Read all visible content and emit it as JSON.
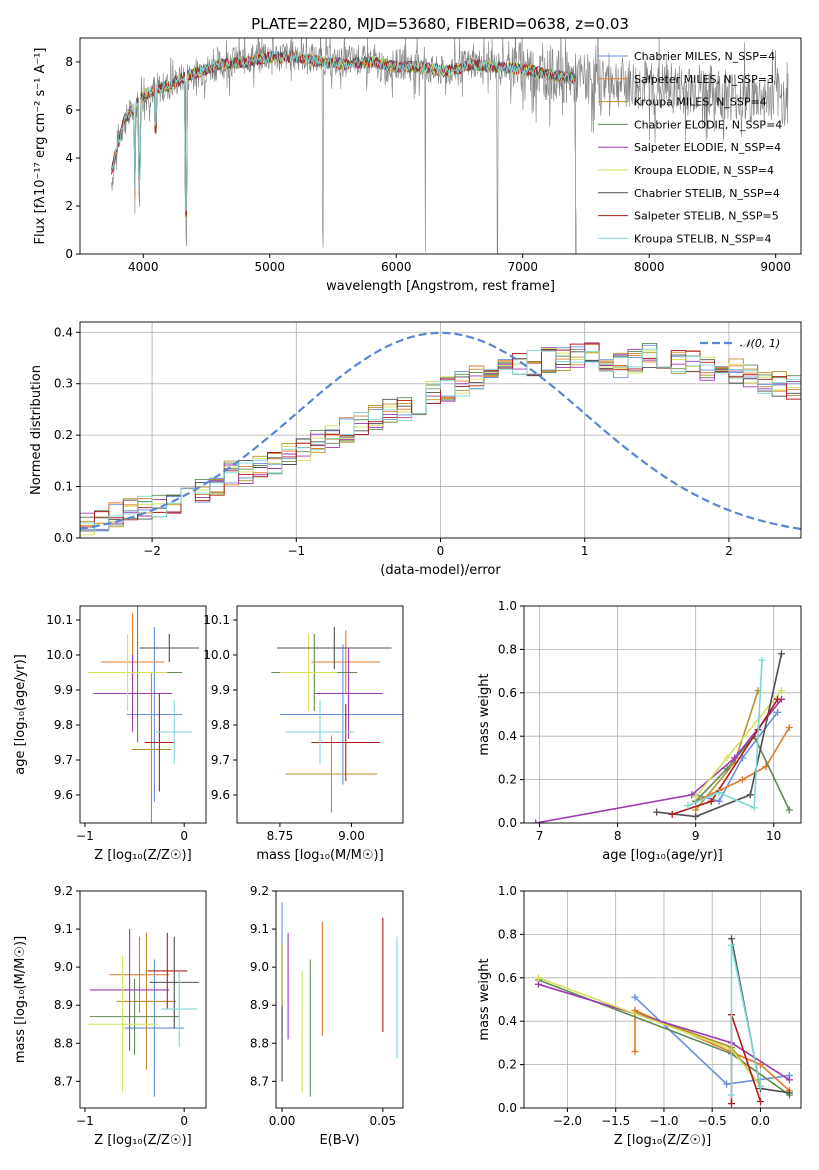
{
  "title": "PLATE=2280, MJD=53680, FIBERID=0638, z=0.03",
  "colors": [
    "#6a8fdb",
    "#e07b2a",
    "#b8912c",
    "#5f8a55",
    "#9d3bb0",
    "#d6e05a",
    "#4f4f4f",
    "#b01c1c",
    "#7fd6d6"
  ],
  "chart_data": [
    {
      "id": "spectrum",
      "type": "line",
      "xlabel": "wavelength [Angstrom, rest frame]",
      "ylabel": "Flux [fλ10⁻¹⁷ erg cm⁻² s⁻¹ A⁻¹]",
      "xlim": [
        3500,
        9200
      ],
      "ylim": [
        0,
        9
      ],
      "xticks": [
        4000,
        5000,
        6000,
        7000,
        8000,
        9000
      ],
      "yticks": [
        0,
        2,
        4,
        6,
        8
      ],
      "grid": false,
      "legend_position": "top-right",
      "legend": [
        "Chabrier MILES, N_SSP=4",
        "Salpeter MILES, N_SSP=3",
        "Kroupa MILES, N_SSP=4",
        "Chabrier ELODIE, N_SSP=4",
        "Salpeter ELODIE, N_SSP=4",
        "Kroupa ELODIE, N_SSP=4",
        "Chabrier STELIB, N_SSP=4",
        "Salpeter STELIB, N_SSP=5",
        "Kroupa STELIB, N_SSP=4"
      ],
      "data_color": "#808080",
      "data_x": [
        3750,
        3800,
        3850,
        3900,
        3950,
        4000,
        4100,
        4200,
        4300,
        4400,
        4500,
        4600,
        4700,
        4800,
        4900,
        5000,
        5100,
        5200,
        5300,
        5400,
        5500,
        5600,
        5700,
        5800,
        5900,
        6000,
        6100,
        6200,
        6300,
        6400,
        6500,
        6600,
        6700,
        6800,
        6900,
        7000,
        7100,
        7200,
        7300,
        7400,
        7500,
        7600,
        7700,
        7800,
        7900,
        8000,
        8100,
        8200,
        8300,
        8400,
        8500,
        8600,
        8700,
        8800,
        8900,
        9000,
        9100
      ],
      "data_y": [
        3.0,
        4.8,
        5.5,
        5.8,
        6.2,
        6.5,
        6.9,
        7.0,
        7.3,
        7.5,
        7.7,
        7.9,
        8.0,
        8.1,
        8.2,
        8.3,
        8.2,
        8.3,
        8.2,
        8.1,
        8.0,
        8.0,
        8.1,
        8.0,
        7.7,
        7.9,
        7.9,
        7.8,
        7.6,
        7.6,
        7.8,
        8.0,
        7.9,
        7.8,
        7.9,
        7.8,
        7.6,
        7.5,
        7.4,
        7.3,
        7.3,
        7.2,
        7.3,
        7.1,
        7.0,
        7.0,
        6.9,
        6.9,
        6.8,
        6.9,
        6.8,
        6.7,
        6.6,
        6.5,
        6.5,
        6.5,
        6.4
      ],
      "model_x": [
        3750,
        3800,
        3850,
        3900,
        4000,
        4100,
        4200,
        4300,
        4400,
        4600,
        4800,
        5000,
        5200,
        5400,
        5600,
        5800,
        6000,
        6200,
        6400,
        6600,
        6800,
        7000,
        7200,
        7400
      ],
      "model_y": [
        3.5,
        4.5,
        5.6,
        5.9,
        6.6,
        6.9,
        7.0,
        7.3,
        7.5,
        7.9,
        8.0,
        8.2,
        8.2,
        8.0,
        7.9,
        8.0,
        7.8,
        7.8,
        7.6,
        7.9,
        7.8,
        7.7,
        7.5,
        7.3
      ],
      "model_end_x": 7420,
      "absorption_lines": [
        {
          "x": 3934,
          "depth": 4.5
        },
        {
          "x": 3969,
          "depth": 4.0
        },
        {
          "x": 4101,
          "depth": 2.0
        },
        {
          "x": 4340,
          "depth": 7.0
        },
        {
          "x": 5420,
          "depth": 7.4
        },
        {
          "x": 6230,
          "depth": 7.6
        },
        {
          "x": 6800,
          "depth": 7.8
        }
      ]
    },
    {
      "id": "residuals",
      "type": "histogram",
      "xlabel": "(data-model)/error",
      "ylabel": "Normed distribution",
      "xlim": [
        -2.5,
        2.5
      ],
      "ylim": [
        0,
        0.42
      ],
      "xticks": [
        -2,
        -1,
        0,
        1,
        2
      ],
      "yticks": [
        0.0,
        0.1,
        0.2,
        0.3,
        0.4
      ],
      "grid": true,
      "legend_position": "top-right",
      "gaussian_label": "𝒩(0, 1)",
      "gaussian_color": "#5b86d6",
      "bin_start": -2.5,
      "bin_width": 0.1,
      "base_hist": [
        0.03,
        0.035,
        0.045,
        0.055,
        0.06,
        0.06,
        0.065,
        0.075,
        0.09,
        0.105,
        0.125,
        0.13,
        0.14,
        0.145,
        0.165,
        0.175,
        0.19,
        0.2,
        0.21,
        0.22,
        0.235,
        0.245,
        0.25,
        0.26,
        0.28,
        0.29,
        0.3,
        0.31,
        0.32,
        0.33,
        0.335,
        0.34,
        0.345,
        0.35,
        0.355,
        0.355,
        0.345,
        0.335,
        0.345,
        0.355,
        0.35,
        0.345,
        0.34,
        0.33,
        0.32,
        0.325,
        0.315,
        0.305,
        0.3,
        0.295,
        0.29,
        0.295,
        0.285,
        0.275,
        0.265,
        0.255,
        0.245,
        0.23,
        0.215,
        0.205,
        0.195,
        0.18,
        0.17,
        0.16,
        0.15,
        0.14,
        0.13,
        0.12,
        0.11,
        0.1,
        0.095,
        0.09,
        0.085,
        0.08,
        0.075,
        0.075,
        0.07,
        0.07,
        0.065,
        0.06,
        0.055,
        0.05,
        0.05,
        0.045,
        0.045,
        0.04,
        0.04,
        0.035,
        0.035,
        0.03,
        0.03,
        0.03,
        0.025,
        0.025,
        0.025,
        0.02,
        0.02,
        0.02,
        0.015,
        0.015
      ]
    },
    {
      "id": "age-vs-Z",
      "type": "errorbar",
      "xlabel": "Z [log₁₀(Z/Z☉)]",
      "ylabel": "age  [log₁₀(age/yr)]",
      "xlim": [
        -1.05,
        0.22
      ],
      "ylim": [
        9.52,
        10.14
      ],
      "xticks": [
        -1,
        0
      ],
      "yticks": [
        9.6,
        9.7,
        9.8,
        9.9,
        10.0,
        10.1
      ],
      "points": [
        {
          "x": -0.3,
          "xerr": 0.28,
          "y": 9.83,
          "yerr": 0.25
        },
        {
          "x": -0.52,
          "xerr": 0.32,
          "y": 9.98,
          "yerr": 0.14
        },
        {
          "x": -0.33,
          "xerr": 0.2,
          "y": 9.73,
          "yerr": 0.22
        },
        {
          "x": -0.47,
          "xerr": 0.45,
          "y": 9.95,
          "yerr": 0.2
        },
        {
          "x": -0.52,
          "xerr": 0.4,
          "y": 9.89,
          "yerr": 0.11
        },
        {
          "x": -0.57,
          "xerr": 0.4,
          "y": 9.95,
          "yerr": 0.11
        },
        {
          "x": -0.15,
          "xerr": 0.3,
          "y": 10.02,
          "yerr": 0.04
        },
        {
          "x": -0.25,
          "xerr": 0.15,
          "y": 9.75,
          "yerr": 0.14
        },
        {
          "x": -0.1,
          "xerr": 0.18,
          "y": 9.78,
          "yerr": 0.09
        }
      ]
    },
    {
      "id": "age-vs-mass",
      "type": "errorbar",
      "xlabel": "mass [log₁₀(M/M☉)]",
      "ylabel": "",
      "xlim": [
        8.6,
        9.18
      ],
      "ylim": [
        9.52,
        10.14
      ],
      "xticks": [
        8.75,
        9.0
      ],
      "yticks": [
        9.6,
        9.7,
        9.8,
        9.9,
        10.0,
        10.1
      ],
      "points": [
        {
          "x": 8.97,
          "xerr": 0.22,
          "y": 9.83,
          "yerr": 0.2
        },
        {
          "x": 8.98,
          "xerr": 0.12,
          "y": 9.98,
          "yerr": 0.09
        },
        {
          "x": 8.93,
          "xerr": 0.16,
          "y": 9.66,
          "yerr": 0.11
        },
        {
          "x": 8.87,
          "xerr": 0.15,
          "y": 9.95,
          "yerr": 0.11
        },
        {
          "x": 8.99,
          "xerr": 0.12,
          "y": 9.89,
          "yerr": 0.13
        },
        {
          "x": 8.85,
          "xerr": 0.1,
          "y": 9.95,
          "yerr": 0.11
        },
        {
          "x": 8.94,
          "xerr": 0.2,
          "y": 10.02,
          "yerr": 0.06
        },
        {
          "x": 8.98,
          "xerr": 0.12,
          "y": 9.75,
          "yerr": 0.11
        },
        {
          "x": 8.89,
          "xerr": 0.12,
          "y": 9.78,
          "yerr": 0.09
        }
      ]
    },
    {
      "id": "weight-vs-age",
      "type": "line",
      "xlabel": "age  [log₁₀(age/yr)]",
      "ylabel": "mass weight",
      "xlim": [
        6.8,
        10.35
      ],
      "ylim": [
        0,
        1
      ],
      "xticks": [
        7,
        8,
        9,
        10
      ],
      "yticks": [
        0.0,
        0.2,
        0.4,
        0.6,
        0.8,
        1.0
      ],
      "grid": true,
      "series": [
        {
          "x": [
            9.0,
            9.3,
            9.6,
            10.05
          ],
          "y": [
            0.13,
            0.1,
            0.3,
            0.51
          ]
        },
        {
          "x": [
            9.0,
            9.3,
            9.6,
            9.9,
            10.2
          ],
          "y": [
            0.1,
            0.15,
            0.2,
            0.26,
            0.44
          ]
        },
        {
          "x": [
            9.0,
            9.5,
            9.8
          ],
          "y": [
            0.06,
            0.28,
            0.61
          ]
        },
        {
          "x": [
            9.0,
            9.4,
            9.75,
            10.2
          ],
          "y": [
            0.1,
            0.25,
            0.4,
            0.06
          ]
        },
        {
          "x": [
            6.95,
            8.95,
            9.5,
            10.1
          ],
          "y": [
            0.0,
            0.13,
            0.3,
            0.57
          ]
        },
        {
          "x": [
            9.0,
            9.4,
            10.1
          ],
          "y": [
            0.12,
            0.3,
            0.61
          ]
        },
        {
          "x": [
            8.5,
            9.0,
            9.7,
            10.1
          ],
          "y": [
            0.05,
            0.03,
            0.13,
            0.78
          ]
        },
        {
          "x": [
            8.7,
            9.2,
            9.8,
            10.05
          ],
          "y": [
            0.04,
            0.1,
            0.43,
            0.57
          ]
        },
        {
          "x": [
            8.9,
            9.3,
            9.75,
            9.85
          ],
          "y": [
            0.08,
            0.14,
            0.07,
            0.75
          ]
        }
      ]
    },
    {
      "id": "mass-vs-Z",
      "type": "errorbar",
      "xlabel": "Z [log₁₀(Z/Z☉)]",
      "ylabel": "mass [log₁₀(M/M☉)]",
      "xlim": [
        -1.05,
        0.22
      ],
      "ylim": [
        8.63,
        9.2
      ],
      "xticks": [
        -1,
        0
      ],
      "yticks": [
        8.7,
        8.8,
        8.9,
        9.0,
        9.1,
        9.2
      ],
      "points": [
        {
          "x": -0.3,
          "xerr": 0.3,
          "y": 8.84,
          "yerr": 0.18
        },
        {
          "x": -0.45,
          "xerr": 0.3,
          "y": 8.98,
          "yerr": 0.1
        },
        {
          "x": -0.38,
          "xerr": 0.3,
          "y": 8.91,
          "yerr": 0.18
        },
        {
          "x": -0.5,
          "xerr": 0.45,
          "y": 8.87,
          "yerr": 0.1
        },
        {
          "x": -0.55,
          "xerr": 0.4,
          "y": 8.94,
          "yerr": 0.16
        },
        {
          "x": -0.62,
          "xerr": 0.35,
          "y": 8.85,
          "yerr": 0.18
        },
        {
          "x": -0.1,
          "xerr": 0.25,
          "y": 8.96,
          "yerr": 0.12
        },
        {
          "x": -0.17,
          "xerr": 0.2,
          "y": 8.99,
          "yerr": 0.1
        },
        {
          "x": -0.05,
          "xerr": 0.18,
          "y": 8.89,
          "yerr": 0.1
        }
      ]
    },
    {
      "id": "mass-vs-ebv",
      "type": "errorbar",
      "xlabel": "E(B-V)",
      "ylabel": "",
      "xlim": [
        -0.003,
        0.06
      ],
      "ylim": [
        8.63,
        9.2
      ],
      "xticks": [
        0.0,
        0.05
      ],
      "yticks": [
        8.7,
        8.8,
        8.9,
        9.0,
        9.1,
        9.2
      ],
      "points": [
        {
          "x": 0.0,
          "y": 9.0,
          "yerr": 0.17
        },
        {
          "x": 0.02,
          "y": 8.97,
          "yerr": 0.15
        },
        {
          "x": 0.0,
          "y": 8.88,
          "yerr": 0.18
        },
        {
          "x": 0.014,
          "y": 8.84,
          "yerr": 0.18
        },
        {
          "x": 0.003,
          "y": 8.95,
          "yerr": 0.14
        },
        {
          "x": 0.01,
          "y": 8.83,
          "yerr": 0.16
        },
        {
          "x": 0.0,
          "y": 8.8,
          "yerr": 0.1
        },
        {
          "x": 0.05,
          "y": 8.98,
          "yerr": 0.15
        },
        {
          "x": 0.057,
          "y": 8.92,
          "yerr": 0.16
        }
      ]
    },
    {
      "id": "weight-vs-Z",
      "type": "line",
      "xlabel": "Z [log₁₀(Z/Z☉)]",
      "ylabel": "mass weight",
      "xlim": [
        -2.45,
        0.42
      ],
      "ylim": [
        0,
        1
      ],
      "xticks": [
        -2.0,
        -1.5,
        -1.0,
        -0.5,
        0.0
      ],
      "yticks": [
        0.0,
        0.2,
        0.4,
        0.6,
        0.8,
        1.0
      ],
      "grid": true,
      "series": [
        {
          "x": [
            -1.3,
            -0.35,
            0.3
          ],
          "y": [
            0.51,
            0.11,
            0.15
          ]
        },
        {
          "x": [
            -1.3,
            -1.3,
            0.0,
            0.3
          ],
          "y": [
            0.26,
            0.45,
            0.2,
            0.08
          ]
        },
        {
          "x": [
            -1.3,
            -0.3,
            0.0
          ],
          "y": [
            0.44,
            0.28,
            0.1
          ]
        },
        {
          "x": [
            -2.3,
            -0.3,
            0.3
          ],
          "y": [
            0.59,
            0.25,
            0.06
          ]
        },
        {
          "x": [
            -2.3,
            -0.3,
            0.3
          ],
          "y": [
            0.57,
            0.3,
            0.13
          ]
        },
        {
          "x": [
            -2.3,
            -0.3,
            0.0
          ],
          "y": [
            0.6,
            0.27,
            0.1
          ]
        },
        {
          "x": [
            -0.3,
            0.0,
            0.3
          ],
          "y": [
            0.78,
            0.09,
            0.07
          ]
        },
        {
          "x": [
            -0.3,
            -0.3,
            0.0
          ],
          "y": [
            0.02,
            0.43,
            0.03
          ]
        },
        {
          "x": [
            -0.3,
            -0.3,
            0.0
          ],
          "y": [
            0.06,
            0.75,
            0.1
          ]
        }
      ]
    }
  ]
}
